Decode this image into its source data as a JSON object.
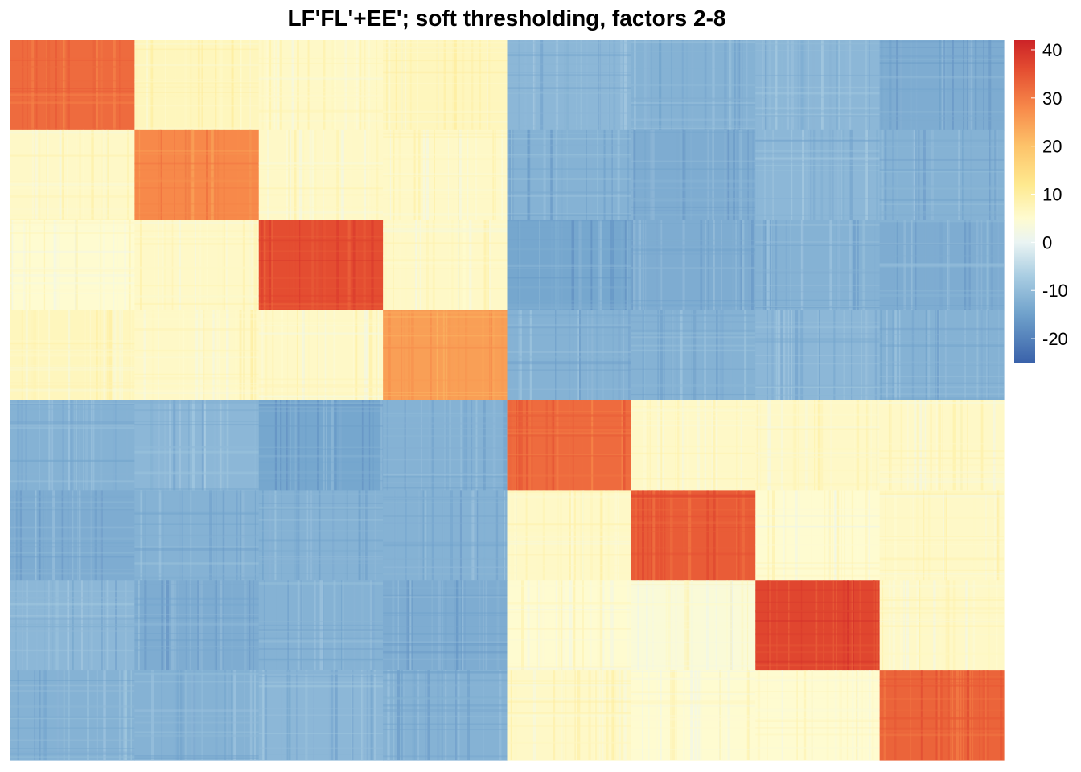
{
  "chart_data": {
    "type": "heatmap",
    "title": "LF'FL'+EE'; soft thresholding, factors 2-8",
    "n_blocks": 8,
    "block_mean_values": [
      [
        32,
        7,
        6,
        7,
        -11,
        -12,
        -11,
        -13
      ],
      [
        6,
        28,
        6,
        6,
        -12,
        -13,
        -11,
        -12
      ],
      [
        5,
        6,
        36,
        6,
        -14,
        -13,
        -12,
        -13
      ],
      [
        7,
        6,
        6,
        25,
        -12,
        -12,
        -11,
        -12
      ],
      [
        -12,
        -11,
        -14,
        -12,
        32,
        6,
        6,
        6
      ],
      [
        -13,
        -12,
        -12,
        -12,
        6,
        34,
        5,
        6
      ],
      [
        -11,
        -13,
        -12,
        -13,
        5,
        4,
        37,
        6
      ],
      [
        -12,
        -12,
        -11,
        -12,
        6,
        5,
        5,
        33
      ]
    ],
    "colorbar": {
      "min": -25,
      "max": 42,
      "ticks": [
        -20,
        -10,
        0,
        10,
        20,
        30,
        40
      ],
      "tick_labels": [
        "-20",
        "-10",
        "0",
        "10",
        "20",
        "30",
        "40"
      ],
      "color_stops": [
        {
          "value": -25,
          "color": "#3a62aa"
        },
        {
          "value": -15,
          "color": "#6fa1cb"
        },
        {
          "value": -7,
          "color": "#a9cde2"
        },
        {
          "value": 0,
          "color": "#eaf4f3"
        },
        {
          "value": 5,
          "color": "#fefbd0"
        },
        {
          "value": 12,
          "color": "#fee98f"
        },
        {
          "value": 20,
          "color": "#fdc36a"
        },
        {
          "value": 28,
          "color": "#f7894a"
        },
        {
          "value": 36,
          "color": "#e44d31"
        },
        {
          "value": 42,
          "color": "#cc2327"
        }
      ]
    },
    "grid": false,
    "legend": "right"
  }
}
